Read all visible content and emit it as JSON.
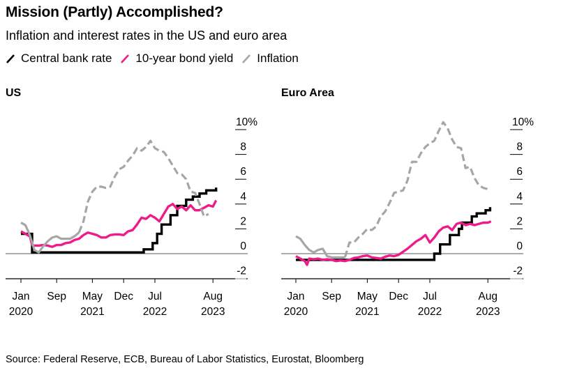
{
  "header": {
    "title": "Mission (Partly) Accomplished?",
    "subtitle": "Inflation and interest rates in the US and euro area"
  },
  "legend": [
    {
      "label": "Central bank rate",
      "color": "#000000",
      "icon": "slash-line-icon"
    },
    {
      "label": "10-year bond yield",
      "color": "#ee1c8a",
      "icon": "slash-line-icon"
    },
    {
      "label": "Inflation",
      "color": "#a6a6a6",
      "icon": "slash-line-icon"
    }
  ],
  "source": "Source: Federal Reserve, ECB, Bureau of Labor Statistics, Eurostat, Bloomberg",
  "chart_data": [
    {
      "type": "line",
      "title": "US",
      "xlabel": "",
      "ylabel": "%",
      "x_unit": "months since Jan 2020",
      "x_ticks": [
        {
          "m": 0,
          "line1": "Jan",
          "line2": "2020"
        },
        {
          "m": 8,
          "line1": "Sep",
          "line2": ""
        },
        {
          "m": 16,
          "line1": "May",
          "line2": "2021"
        },
        {
          "m": 23,
          "line1": "Dec",
          "line2": ""
        },
        {
          "m": 30,
          "line1": "Jul",
          "line2": "2022"
        },
        {
          "m": 43,
          "line1": "Aug",
          "line2": "2023"
        }
      ],
      "y_ticks": [
        {
          "v": 10,
          "label": "10%"
        },
        {
          "v": 8,
          "label": "8"
        },
        {
          "v": 6,
          "label": "6"
        },
        {
          "v": 4,
          "label": "4"
        },
        {
          "v": 2,
          "label": "2"
        },
        {
          "v": 0,
          "label": "0"
        },
        {
          "v": -2,
          "label": "-2"
        }
      ],
      "ylim": [
        -2,
        10
      ],
      "xlim": [
        -3,
        51
      ],
      "inflation_solid_until": 13.5,
      "series": [
        {
          "name": "Central bank rate",
          "color": "#000000",
          "step": true,
          "x": [
            0,
            2,
            2.5,
            26.5,
            27.5,
            29.5,
            30.5,
            31.5,
            33.5,
            35,
            37,
            38.5,
            40,
            41.5,
            43.7
          ],
          "y": [
            1.6,
            1.6,
            0.1,
            0.1,
            0.35,
            0.85,
            1.6,
            2.35,
            3.1,
            3.85,
            4.35,
            4.6,
            4.85,
            5.1,
            5.33
          ]
        },
        {
          "name": "10-year bond yield",
          "color": "#ee1c8a",
          "x": [
            0,
            1,
            2,
            2.5,
            3,
            4,
            5,
            6,
            7,
            8,
            9,
            10,
            11,
            12,
            13,
            14,
            15,
            16,
            17,
            18,
            19,
            20,
            21,
            22,
            23,
            24,
            25,
            26,
            27,
            28,
            29,
            30,
            31,
            32,
            33,
            34,
            35,
            36,
            37,
            38,
            39,
            40,
            41,
            42,
            43,
            43.7
          ],
          "y": [
            1.8,
            1.6,
            1.4,
            0.7,
            0.65,
            0.65,
            0.7,
            0.65,
            0.55,
            0.7,
            0.7,
            0.85,
            0.9,
            1.1,
            1.2,
            1.5,
            1.7,
            1.6,
            1.5,
            1.3,
            1.3,
            1.5,
            1.55,
            1.55,
            1.5,
            1.8,
            1.9,
            2.35,
            2.9,
            2.8,
            3.1,
            2.9,
            2.6,
            3.2,
            3.8,
            4.0,
            3.6,
            3.8,
            3.5,
            3.9,
            3.5,
            3.5,
            3.7,
            3.9,
            3.8,
            4.3
          ]
        },
        {
          "name": "Inflation",
          "color": "#a6a6a6",
          "dashed_after_solid": true,
          "x": [
            0,
            1,
            2,
            3,
            4,
            5,
            6,
            7,
            8,
            9,
            10,
            11,
            12,
            13,
            14,
            15,
            16,
            17,
            18,
            19,
            20,
            21,
            22,
            23,
            24,
            25,
            26,
            27,
            28,
            29,
            30,
            31,
            32,
            33,
            34,
            35,
            36,
            37,
            38,
            39,
            40,
            41,
            42
          ],
          "y": [
            2.5,
            2.3,
            1.5,
            0.3,
            0.1,
            0.6,
            1.0,
            1.3,
            1.4,
            1.2,
            1.2,
            1.2,
            1.4,
            1.7,
            2.6,
            4.2,
            5.0,
            5.4,
            5.4,
            5.3,
            5.4,
            6.2,
            6.8,
            7.0,
            7.5,
            7.9,
            8.5,
            8.3,
            8.6,
            9.1,
            8.5,
            8.3,
            8.2,
            7.7,
            7.1,
            6.5,
            6.4,
            6.0,
            5.0,
            4.9,
            4.0,
            3.0,
            3.2
          ]
        }
      ]
    },
    {
      "type": "line",
      "title": "Euro Area",
      "xlabel": "",
      "ylabel": "%",
      "x_unit": "months since Jan 2020",
      "x_ticks": [
        {
          "m": 0,
          "line1": "Jan",
          "line2": "2020"
        },
        {
          "m": 8,
          "line1": "Sep",
          "line2": ""
        },
        {
          "m": 16,
          "line1": "May",
          "line2": "2021"
        },
        {
          "m": 23,
          "line1": "Dec",
          "line2": ""
        },
        {
          "m": 30,
          "line1": "Jul",
          "line2": "2022"
        },
        {
          "m": 43,
          "line1": "Aug",
          "line2": "2023"
        }
      ],
      "y_ticks": [
        {
          "v": 10,
          "label": "10%"
        },
        {
          "v": 8,
          "label": "8"
        },
        {
          "v": 6,
          "label": "6"
        },
        {
          "v": 4,
          "label": "4"
        },
        {
          "v": 2,
          "label": "2"
        },
        {
          "v": 0,
          "label": "0"
        },
        {
          "v": -2,
          "label": "-2"
        }
      ],
      "ylim": [
        -2,
        10
      ],
      "xlim": [
        -3,
        51
      ],
      "inflation_solid_until": 11.5,
      "series": [
        {
          "name": "Central bank rate",
          "color": "#000000",
          "step": true,
          "x": [
            0,
            30,
            31,
            32.3,
            33.2,
            34.5,
            35.2,
            36.5,
            37.2,
            38.5,
            39.4,
            40.5,
            41.2,
            42.5,
            43.5
          ],
          "y": [
            -0.5,
            -0.5,
            0.0,
            0.75,
            0.75,
            1.5,
            1.5,
            2.0,
            2.5,
            2.5,
            3.0,
            3.25,
            3.25,
            3.5,
            3.75
          ]
        },
        {
          "name": "10-year bond yield",
          "color": "#ee1c8a",
          "x": [
            0,
            1,
            2,
            2.5,
            3,
            4,
            5,
            6,
            7,
            8,
            9,
            10,
            11,
            12,
            13,
            14,
            15,
            16,
            17,
            18,
            19,
            20,
            21,
            22,
            23,
            24,
            25,
            26,
            27,
            28,
            29,
            30,
            31,
            32,
            33,
            34,
            35,
            36,
            37,
            38,
            39,
            40,
            41,
            42,
            43,
            43.7
          ],
          "y": [
            -0.2,
            -0.4,
            -0.6,
            -0.9,
            -0.4,
            -0.45,
            -0.4,
            -0.5,
            -0.45,
            -0.5,
            -0.6,
            -0.55,
            -0.6,
            -0.5,
            -0.35,
            -0.3,
            -0.2,
            -0.15,
            -0.3,
            -0.35,
            -0.4,
            -0.25,
            -0.15,
            -0.2,
            -0.1,
            0.15,
            0.4,
            0.7,
            1.0,
            1.2,
            1.5,
            0.9,
            1.3,
            1.8,
            2.1,
            2.2,
            1.9,
            2.4,
            2.5,
            2.3,
            2.4,
            2.3,
            2.4,
            2.5,
            2.5,
            2.6
          ]
        },
        {
          "name": "Inflation",
          "color": "#a6a6a6",
          "dashed_after_solid": true,
          "x": [
            0,
            1,
            2,
            3,
            4,
            5,
            6,
            7,
            8,
            9,
            10,
            11,
            12,
            13,
            14,
            15,
            16,
            17,
            18,
            19,
            20,
            21,
            22,
            23,
            24,
            25,
            26,
            27,
            28,
            29,
            30,
            31,
            32,
            33,
            34,
            35,
            36,
            37,
            38,
            39,
            40,
            41,
            42,
            43
          ],
          "y": [
            1.4,
            1.2,
            0.7,
            0.3,
            0.1,
            0.3,
            0.4,
            -0.2,
            -0.3,
            -0.3,
            -0.3,
            -0.3,
            0.9,
            0.9,
            1.3,
            1.6,
            2.0,
            1.9,
            2.2,
            3.0,
            3.4,
            4.1,
            4.9,
            5.0,
            5.1,
            5.9,
            7.4,
            7.4,
            8.1,
            8.6,
            8.9,
            9.1,
            9.9,
            10.6,
            10.1,
            9.2,
            8.6,
            8.5,
            6.9,
            7.0,
            6.1,
            5.5,
            5.3,
            5.2
          ]
        }
      ]
    }
  ]
}
